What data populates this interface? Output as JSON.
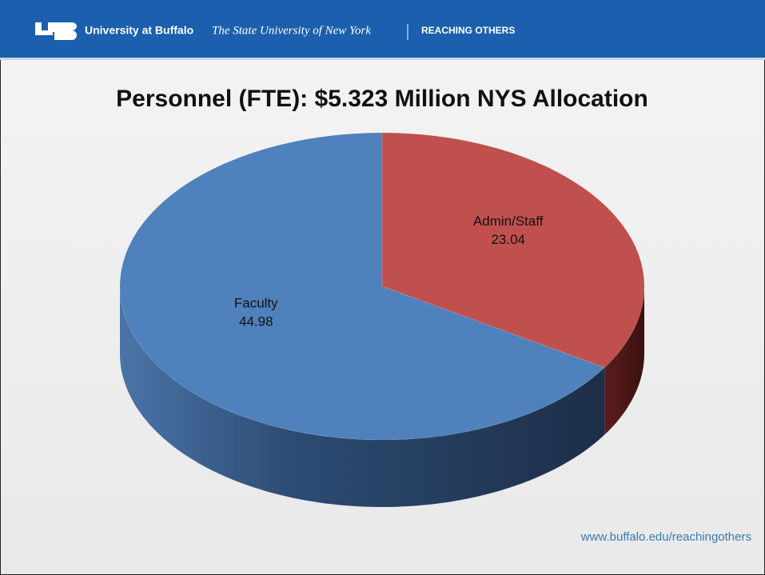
{
  "header": {
    "brand": "University at Buffalo",
    "tagline": "The State University of New York",
    "slogan": "REACHING OTHERS"
  },
  "chart_data": {
    "type": "pie",
    "title": "Personnel (FTE):  $5.323 Million NYS Allocation",
    "categories": [
      "Faculty",
      "Admin/Staff"
    ],
    "values": [
      44.98,
      23.04
    ],
    "colors": [
      "#4f81bd",
      "#c0504d"
    ]
  },
  "footer": {
    "url": "www.buffalo.edu/reachingothers"
  }
}
